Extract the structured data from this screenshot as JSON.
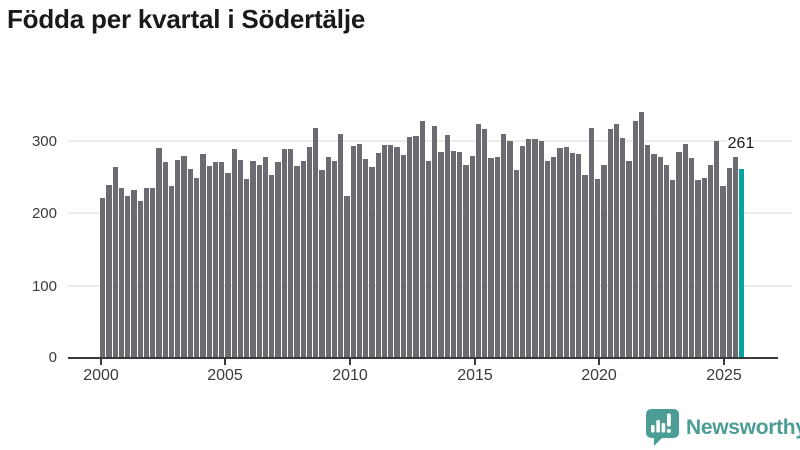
{
  "title": "Födda per kvartal i Södertälje",
  "annotation": {
    "label": "261"
  },
  "logo": {
    "text": "Newsworthy",
    "icon": "newsworthy-speech-bubble-chart-icon"
  },
  "colors": {
    "bar_gray": "#6b6b71",
    "highlight_teal": "#0aa1a1",
    "brand_teal": "#4b9d96",
    "axis_text": "#3b3b3b",
    "gridline": "#ececec",
    "axis_line": "#3a3a3a"
  },
  "chart_data": {
    "type": "bar",
    "title": "Födda per kvartal i Södertälje",
    "xlabel": "",
    "ylabel": "",
    "grid": "horizontal-only",
    "legend": "none",
    "ylim": [
      0,
      350
    ],
    "ytick_labels": [
      "0",
      "100",
      "200",
      "300"
    ],
    "yticks": [
      0,
      100,
      200,
      300
    ],
    "xtick_labels": [
      "2000",
      "2005",
      "2010",
      "2015",
      "2020",
      "2025"
    ],
    "highlight_index": 102,
    "highlight_value": 261,
    "highlight_label": "261",
    "categories": [
      "2000K1",
      "2000K2",
      "2000K3",
      "2000K4",
      "2001K1",
      "2001K2",
      "2001K3",
      "2001K4",
      "2002K1",
      "2002K2",
      "2002K3",
      "2002K4",
      "2003K1",
      "2003K2",
      "2003K3",
      "2003K4",
      "2004K1",
      "2004K2",
      "2004K3",
      "2004K4",
      "2005K1",
      "2005K2",
      "2005K3",
      "2005K4",
      "2006K1",
      "2006K2",
      "2006K3",
      "2006K4",
      "2007K1",
      "2007K2",
      "2007K3",
      "2007K4",
      "2008K1",
      "2008K2",
      "2008K3",
      "2008K4",
      "2009K1",
      "2009K2",
      "2009K3",
      "2009K4",
      "2010K1",
      "2010K2",
      "2010K3",
      "2010K4",
      "2011K1",
      "2011K2",
      "2011K3",
      "2011K4",
      "2012K1",
      "2012K2",
      "2012K3",
      "2012K4",
      "2013K1",
      "2013K2",
      "2013K3",
      "2013K4",
      "2014K1",
      "2014K2",
      "2014K3",
      "2014K4",
      "2015K1",
      "2015K2",
      "2015K3",
      "2015K4",
      "2016K1",
      "2016K2",
      "2016K3",
      "2016K4",
      "2017K1",
      "2017K2",
      "2017K3",
      "2017K4",
      "2018K1",
      "2018K2",
      "2018K3",
      "2018K4",
      "2019K1",
      "2019K2",
      "2019K3",
      "2019K4",
      "2020K1",
      "2020K2",
      "2020K3",
      "2020K4",
      "2021K1",
      "2021K2",
      "2021K3",
      "2021K4",
      "2022K1",
      "2022K2",
      "2022K3",
      "2022K4",
      "2023K1",
      "2023K2",
      "2023K3",
      "2023K4",
      "2024K1",
      "2024K2",
      "2024K3",
      "2024K4",
      "2025K1",
      "2025K2",
      "2025K3"
    ],
    "values": [
      220,
      239,
      263,
      234,
      224,
      232,
      217,
      234,
      234,
      290,
      271,
      237,
      273,
      279,
      261,
      248,
      282,
      265,
      271,
      271,
      255,
      289,
      273,
      247,
      272,
      267,
      278,
      253,
      270,
      288,
      288,
      265,
      272,
      292,
      317,
      259,
      277,
      272,
      309,
      224,
      293,
      296,
      275,
      264,
      283,
      294,
      294,
      292,
      280,
      305,
      306,
      327,
      272,
      320,
      285,
      308,
      286,
      285,
      267,
      279,
      323,
      316,
      276,
      278,
      310,
      300,
      259,
      293,
      302,
      303,
      299,
      272,
      278,
      290,
      292,
      283,
      282,
      252,
      318,
      247,
      266,
      316,
      323,
      304,
      272,
      327,
      340,
      294,
      282,
      278,
      267,
      245,
      284,
      295,
      276,
      245,
      249,
      266,
      299,
      237,
      262,
      277,
      261
    ]
  }
}
